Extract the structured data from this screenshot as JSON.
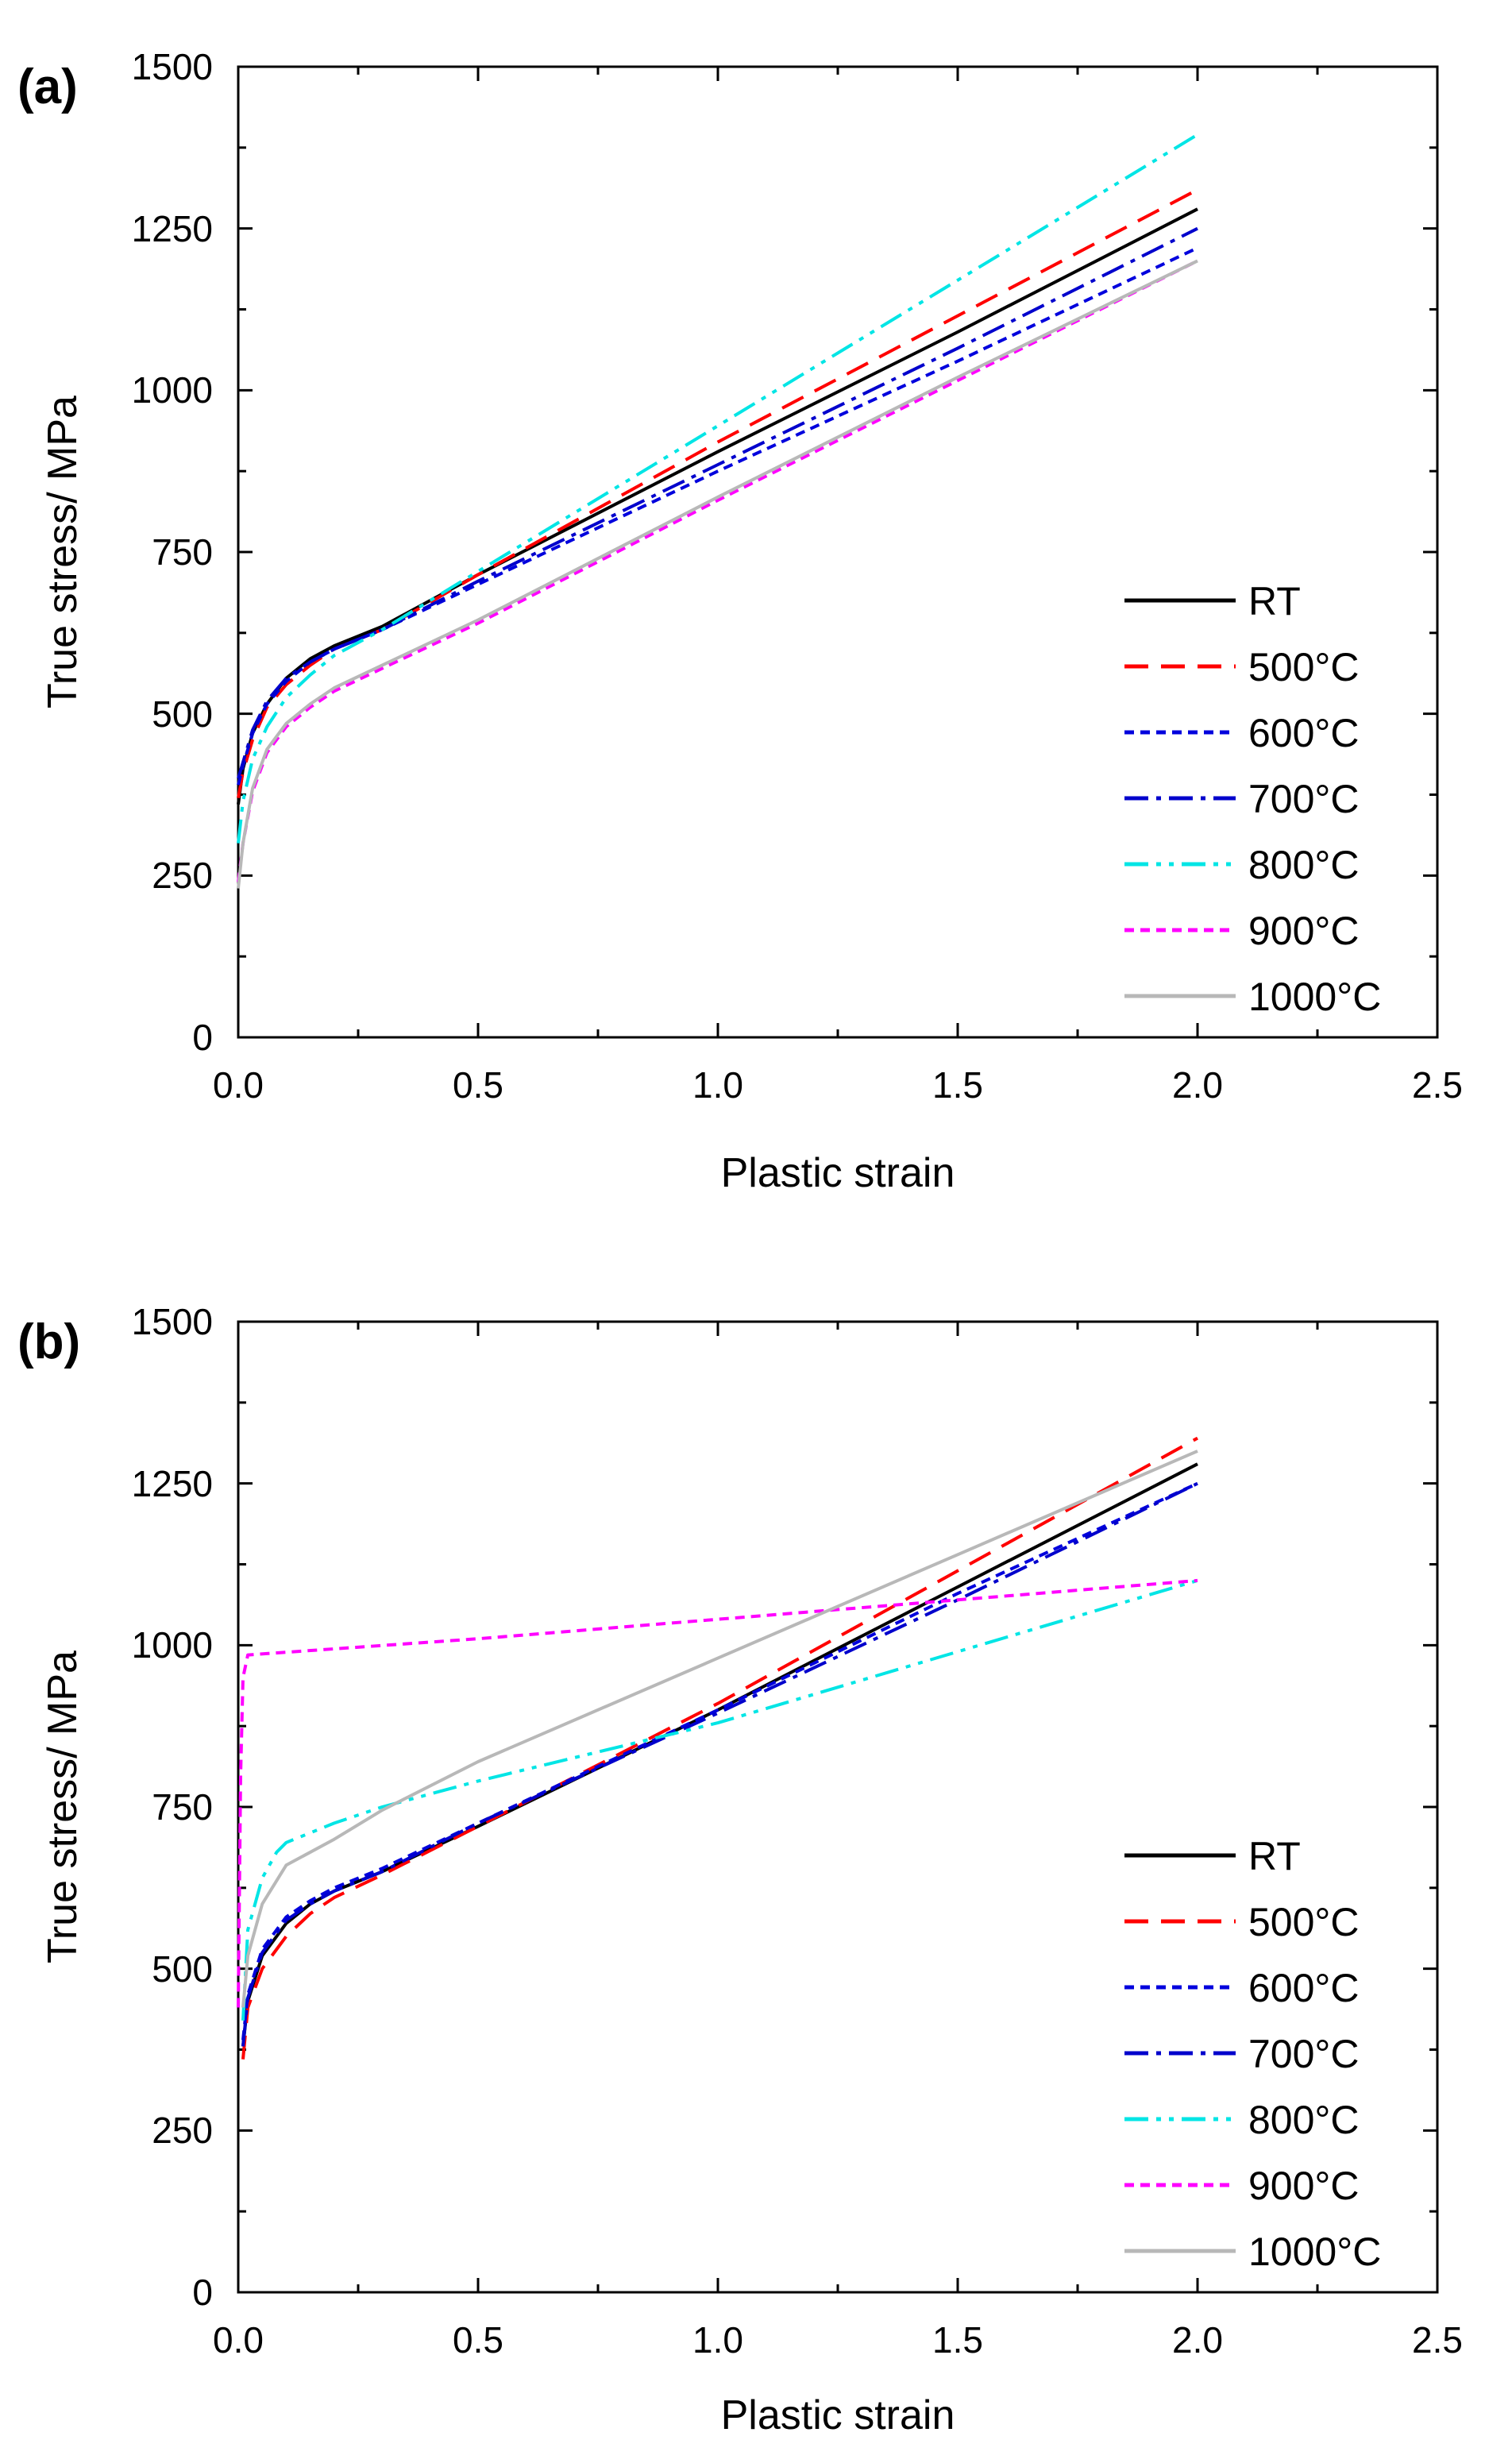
{
  "figure": {
    "xlabel": "Plastic strain",
    "ylabel": "True stress/ MPa",
    "x_ticks": [
      "0.0",
      "0.5",
      "1.0",
      "1.5",
      "2.0",
      "2.5"
    ],
    "y_ticks": [
      "0",
      "250",
      "500",
      "750",
      "1000",
      "1250",
      "1500"
    ]
  },
  "series_styles": [
    {
      "name": "RT",
      "color": "#000000",
      "dash": "solid"
    },
    {
      "name": "500°C",
      "color": "#ff0000",
      "dash": "dash"
    },
    {
      "name": "600°C",
      "color": "#0000dd",
      "dash": "short-dash"
    },
    {
      "name": "700°C",
      "color": "#0000cc",
      "dash": "dash-dot"
    },
    {
      "name": "800°C",
      "color": "#00e5e5",
      "dash": "dash-dot-dot"
    },
    {
      "name": "900°C",
      "color": "#ff00ff",
      "dash": "short-dash"
    },
    {
      "name": "1000°C",
      "color": "#b8b8b8",
      "dash": "solid"
    }
  ],
  "chart_data": [
    {
      "type": "line",
      "panel": "(a)",
      "xlabel": "Plastic strain",
      "ylabel": "True stress/ MPa",
      "xlim": [
        0,
        2.5
      ],
      "ylim": [
        0,
        1500
      ],
      "legend_position": "bottom-right",
      "series": [
        {
          "name": "RT",
          "x": [
            0,
            0.01,
            0.03,
            0.06,
            0.1,
            0.15,
            0.2,
            0.3,
            0.5,
            1.0,
            1.5,
            2.0
          ],
          "y": [
            360,
            415,
            470,
            515,
            555,
            585,
            605,
            635,
            715,
            905,
            1090,
            1280
          ]
        },
        {
          "name": "500°C",
          "x": [
            0,
            0.01,
            0.03,
            0.06,
            0.1,
            0.15,
            0.2,
            0.3,
            0.5,
            1.0,
            1.5,
            2.0
          ],
          "y": [
            370,
            410,
            460,
            510,
            545,
            575,
            600,
            630,
            715,
            920,
            1115,
            1310
          ]
        },
        {
          "name": "600°C",
          "x": [
            0,
            0.01,
            0.03,
            0.06,
            0.1,
            0.15,
            0.2,
            0.3,
            0.5,
            1.0,
            1.5,
            2.0
          ],
          "y": [
            390,
            420,
            470,
            515,
            550,
            580,
            600,
            630,
            700,
            875,
            1045,
            1220
          ]
        },
        {
          "name": "700°C",
          "x": [
            0,
            0.01,
            0.03,
            0.06,
            0.1,
            0.15,
            0.2,
            0.3,
            0.5,
            1.0,
            1.5,
            2.0
          ],
          "y": [
            400,
            425,
            475,
            520,
            555,
            580,
            600,
            630,
            705,
            885,
            1065,
            1250
          ]
        },
        {
          "name": "800°C",
          "x": [
            0,
            0.01,
            0.03,
            0.06,
            0.1,
            0.15,
            0.2,
            0.3,
            0.5,
            1.0,
            1.5,
            2.0
          ],
          "y": [
            300,
            365,
            430,
            480,
            525,
            560,
            590,
            630,
            720,
            945,
            1170,
            1395
          ]
        },
        {
          "name": "900°C",
          "x": [
            0,
            0.01,
            0.03,
            0.06,
            0.1,
            0.15,
            0.2,
            0.3,
            0.5,
            1.0,
            1.5,
            2.0
          ],
          "y": [
            240,
            300,
            380,
            440,
            480,
            510,
            535,
            570,
            640,
            830,
            1015,
            1200
          ]
        },
        {
          "name": "1000°C",
          "x": [
            0,
            0.01,
            0.03,
            0.06,
            0.1,
            0.15,
            0.2,
            0.3,
            0.5,
            1.0,
            1.5,
            2.0
          ],
          "y": [
            230,
            300,
            385,
            445,
            485,
            515,
            540,
            575,
            645,
            835,
            1020,
            1200
          ]
        }
      ]
    },
    {
      "type": "line",
      "panel": "(b)",
      "xlabel": "Plastic strain",
      "ylabel": "True stress/ MPa",
      "xlim": [
        0,
        2.5
      ],
      "ylim": [
        0,
        1500
      ],
      "legend_position": "bottom-right",
      "series": [
        {
          "name": "RT",
          "x": [
            0.01,
            0.02,
            0.05,
            0.1,
            0.15,
            0.2,
            0.3,
            0.5,
            1.0,
            1.5,
            2.0
          ],
          "y": [
            380,
            450,
            520,
            570,
            600,
            620,
            650,
            720,
            900,
            1090,
            1280
          ]
        },
        {
          "name": "500°C",
          "x": [
            0.01,
            0.02,
            0.05,
            0.1,
            0.15,
            0.2,
            0.3,
            0.5,
            1.0,
            1.5,
            2.0
          ],
          "y": [
            360,
            440,
            500,
            550,
            585,
            610,
            645,
            720,
            910,
            1115,
            1320
          ]
        },
        {
          "name": "600°C",
          "x": [
            0.01,
            0.02,
            0.05,
            0.1,
            0.15,
            0.2,
            0.3,
            0.5,
            1.0,
            1.5,
            2.0
          ],
          "y": [
            390,
            460,
            530,
            580,
            605,
            625,
            655,
            725,
            900,
            1080,
            1250
          ]
        },
        {
          "name": "700°C",
          "x": [
            0.01,
            0.02,
            0.05,
            0.1,
            0.15,
            0.2,
            0.3,
            0.5,
            1.0,
            1.5,
            2.0
          ],
          "y": [
            380,
            455,
            525,
            575,
            600,
            620,
            650,
            725,
            895,
            1070,
            1250
          ]
        },
        {
          "name": "800°C",
          "x": [
            0.01,
            0.02,
            0.05,
            0.08,
            0.1,
            0.2,
            0.3,
            0.5,
            1.0,
            1.5,
            2.0
          ],
          "y": [
            420,
            560,
            640,
            680,
            695,
            725,
            750,
            790,
            880,
            990,
            1100
          ]
        },
        {
          "name": "900°C",
          "x": [
            0,
            0.005,
            0.01,
            0.02,
            0.5,
            1.0,
            1.5,
            2.0
          ],
          "y": [
            440,
            800,
            950,
            985,
            1010,
            1040,
            1070,
            1100
          ]
        },
        {
          "name": "1000°C",
          "x": [
            0.01,
            0.02,
            0.05,
            0.1,
            0.2,
            0.3,
            0.5,
            1.0,
            1.5,
            2.0
          ],
          "y": [
            440,
            520,
            600,
            660,
            700,
            745,
            820,
            980,
            1140,
            1300
          ]
        }
      ]
    }
  ]
}
